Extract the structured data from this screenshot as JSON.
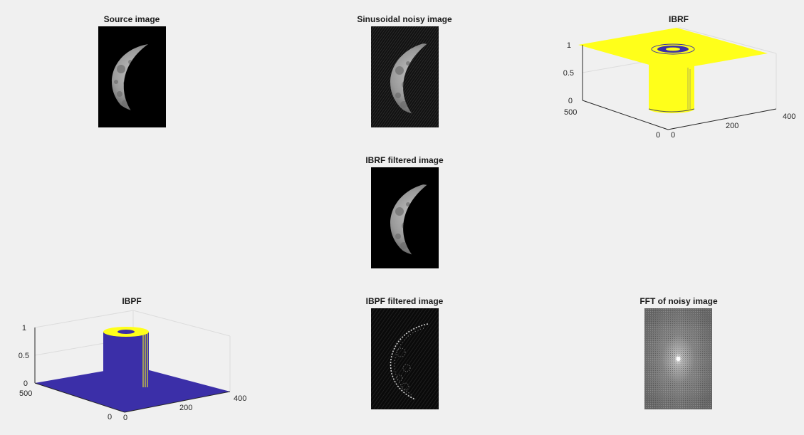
{
  "figure": {
    "background": "#f0f0f0",
    "subplots": [
      {
        "id": "source",
        "title": "Source image",
        "kind": "image",
        "content": "moon"
      },
      {
        "id": "noisy",
        "title": "Sinusoidal noisy image",
        "kind": "image",
        "content": "moon-noisy"
      },
      {
        "id": "ibrf",
        "title": "IBRF",
        "kind": "surface",
        "content": "band-reject",
        "z_ticks": [
          "0",
          "0.5",
          "1"
        ],
        "y_ticks": [
          "0",
          "500"
        ],
        "x_ticks": [
          "0",
          "200",
          "400"
        ]
      },
      {
        "id": "ibrf_filtered",
        "title": "IBRF filtered image",
        "kind": "image",
        "content": "moon"
      },
      {
        "id": "ibpf",
        "title": "IBPF",
        "kind": "surface",
        "content": "band-pass",
        "z_ticks": [
          "0",
          "0.5",
          "1"
        ],
        "y_ticks": [
          "0",
          "500"
        ],
        "x_ticks": [
          "0",
          "200",
          "400"
        ]
      },
      {
        "id": "ibpf_filtered",
        "title": "IBPF filtered image",
        "kind": "image",
        "content": "moon-edges"
      },
      {
        "id": "fft",
        "title": "FFT of noisy image",
        "kind": "image",
        "content": "spectrum"
      }
    ],
    "colors": {
      "surface_yellow": "#ffff1a",
      "surface_blue": "#3b2fa8",
      "axis": "#262626"
    }
  }
}
